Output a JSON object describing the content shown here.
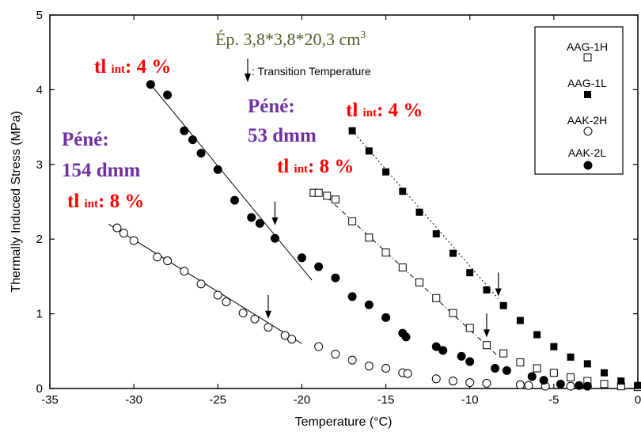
{
  "chart_data": {
    "type": "scatter",
    "xlabel": "Temperature (°C)",
    "ylabel": "Thermally Induced Stress (MPa)",
    "xlim": [
      -35,
      0
    ],
    "ylim": [
      0,
      5
    ],
    "x_ticks": [
      "-35",
      "-30",
      "-25",
      "-20",
      "-15",
      "-10",
      "-5",
      "0"
    ],
    "y_ticks": [
      "0",
      "1",
      "2",
      "3",
      "4",
      "5"
    ],
    "grid": false,
    "legend_position": "top-right",
    "legend": [
      {
        "name": "AAG-1H",
        "marker": "open-square"
      },
      {
        "name": "AAG-1L",
        "marker": "filled-square"
      },
      {
        "name": "AAK-2H",
        "marker": "open-circle"
      },
      {
        "name": "AAK-2L",
        "marker": "filled-circle"
      }
    ],
    "transition_label": ": Transition Temperature",
    "series": [
      {
        "name": "AAG-1H",
        "marker": "open-square",
        "points": [
          [
            -19.3,
            2.62
          ],
          [
            -19.0,
            2.62
          ],
          [
            -18.5,
            2.58
          ],
          [
            -18.0,
            2.53
          ],
          [
            -17.0,
            2.24
          ],
          [
            -16.0,
            2.02
          ],
          [
            -15.0,
            1.82
          ],
          [
            -14.0,
            1.62
          ],
          [
            -13.0,
            1.42
          ],
          [
            -12.0,
            1.21
          ],
          [
            -11.0,
            1.01
          ],
          [
            -10.0,
            0.81
          ],
          [
            -9.0,
            0.58
          ],
          [
            -8.0,
            0.47
          ],
          [
            -7.0,
            0.35
          ],
          [
            -6.0,
            0.27
          ],
          [
            -5.0,
            0.21
          ],
          [
            -4.0,
            0.15
          ],
          [
            -3.0,
            0.1
          ],
          [
            -2.0,
            0.06
          ],
          [
            -1.0,
            0.03
          ],
          [
            0.0,
            0.02
          ]
        ],
        "trend": [
          [
            -18.5,
            2.56
          ],
          [
            -8.4,
            0.45
          ]
        ],
        "transition": [
          -9.0,
          0.6
        ]
      },
      {
        "name": "AAG-1L",
        "marker": "filled-square",
        "points": [
          [
            -17.0,
            3.45
          ],
          [
            -16.0,
            3.18
          ],
          [
            -15.0,
            2.9
          ],
          [
            -14.0,
            2.64
          ],
          [
            -13.0,
            2.36
          ],
          [
            -12.0,
            2.07
          ],
          [
            -11.0,
            1.81
          ],
          [
            -10.0,
            1.55
          ],
          [
            -9.0,
            1.32
          ],
          [
            -8.0,
            1.11
          ],
          [
            -7.0,
            0.91
          ],
          [
            -6.0,
            0.72
          ],
          [
            -5.0,
            0.56
          ],
          [
            -4.0,
            0.42
          ],
          [
            -3.0,
            0.33
          ],
          [
            -2.0,
            0.21
          ],
          [
            -1.0,
            0.1
          ],
          [
            0.0,
            0.04
          ]
        ],
        "trend": [
          [
            -17.0,
            3.45
          ],
          [
            -8.3,
            1.2
          ]
        ],
        "transition": [
          -8.3,
          1.15
        ]
      },
      {
        "name": "AAK-2H",
        "marker": "open-circle",
        "points": [
          [
            -31.0,
            2.15
          ],
          [
            -30.6,
            2.08
          ],
          [
            -30.0,
            1.98
          ],
          [
            -28.6,
            1.76
          ],
          [
            -28.0,
            1.71
          ],
          [
            -27.0,
            1.57
          ],
          [
            -26.0,
            1.4
          ],
          [
            -25.0,
            1.25
          ],
          [
            -24.5,
            1.16
          ],
          [
            -23.5,
            1.01
          ],
          [
            -22.8,
            0.93
          ],
          [
            -22.0,
            0.82
          ],
          [
            -21.0,
            0.71
          ],
          [
            -20.6,
            0.66
          ],
          [
            -19.0,
            0.56
          ],
          [
            -18.0,
            0.46
          ],
          [
            -17.0,
            0.38
          ],
          [
            -16.0,
            0.3
          ],
          [
            -15.0,
            0.27
          ],
          [
            -14.0,
            0.21
          ],
          [
            -13.7,
            0.2
          ],
          [
            -12.0,
            0.13
          ],
          [
            -11.0,
            0.1
          ],
          [
            -10.0,
            0.08
          ],
          [
            -9.0,
            0.07
          ],
          [
            -7.0,
            0.05
          ],
          [
            -6.5,
            0.04
          ],
          [
            -5.5,
            0.03
          ],
          [
            -4.0,
            0.03
          ]
        ],
        "trend": [
          [
            -31.5,
            2.2
          ],
          [
            -20.0,
            0.6
          ]
        ],
        "transition": [
          -22.0,
          0.85
        ]
      },
      {
        "name": "AAK-2L",
        "marker": "filled-circle",
        "points": [
          [
            -29.0,
            4.07
          ],
          [
            -28.0,
            3.93
          ],
          [
            -27.0,
            3.45
          ],
          [
            -26.5,
            3.33
          ],
          [
            -26.0,
            3.15
          ],
          [
            -25.0,
            2.93
          ],
          [
            -24.0,
            2.52
          ],
          [
            -23.0,
            2.29
          ],
          [
            -22.5,
            2.21
          ],
          [
            -21.6,
            2.01
          ],
          [
            -20.0,
            1.75
          ],
          [
            -19.0,
            1.63
          ],
          [
            -18.0,
            1.48
          ],
          [
            -17.0,
            1.23
          ],
          [
            -16.0,
            1.12
          ],
          [
            -15.0,
            0.95
          ],
          [
            -14.0,
            0.74
          ],
          [
            -13.8,
            0.69
          ],
          [
            -12.0,
            0.56
          ],
          [
            -11.6,
            0.51
          ],
          [
            -10.5,
            0.43
          ],
          [
            -10.0,
            0.36
          ],
          [
            -8.5,
            0.27
          ],
          [
            -7.8,
            0.24
          ],
          [
            -6.3,
            0.16
          ],
          [
            -5.6,
            0.11
          ],
          [
            -4.6,
            0.06
          ],
          [
            -3.5,
            0.04
          ],
          [
            -3.0,
            0.03
          ]
        ],
        "trend": [
          [
            -29.0,
            4.07
          ],
          [
            -19.4,
            1.45
          ]
        ],
        "transition": [
          -21.6,
          2.1
        ]
      }
    ],
    "annotations": {
      "specimen": "Ép. 3,8*3,8*20,3 cm",
      "specimen_sup": "3",
      "tl1_main": "tl ",
      "tl1_sub": "int",
      "tl1_value": ": 4 %",
      "tl2_main": "tl ",
      "tl2_sub": "int",
      "tl2_value": ": 4 %",
      "tl3_main": "tl ",
      "tl3_sub": "int",
      "tl3_value": ": 8 %",
      "tl4_main": "tl ",
      "tl4_sub": "int",
      "tl4_value": ": 8 %",
      "pene1_title": "Péné:",
      "pene1_value": "154 dmm",
      "pene2_title": "Péné:",
      "pene2_value": "53 dmm"
    },
    "colors": {
      "red": "#ff0000",
      "purple": "#7030a0",
      "olive": "#4f6228",
      "ink": "#000000"
    }
  }
}
